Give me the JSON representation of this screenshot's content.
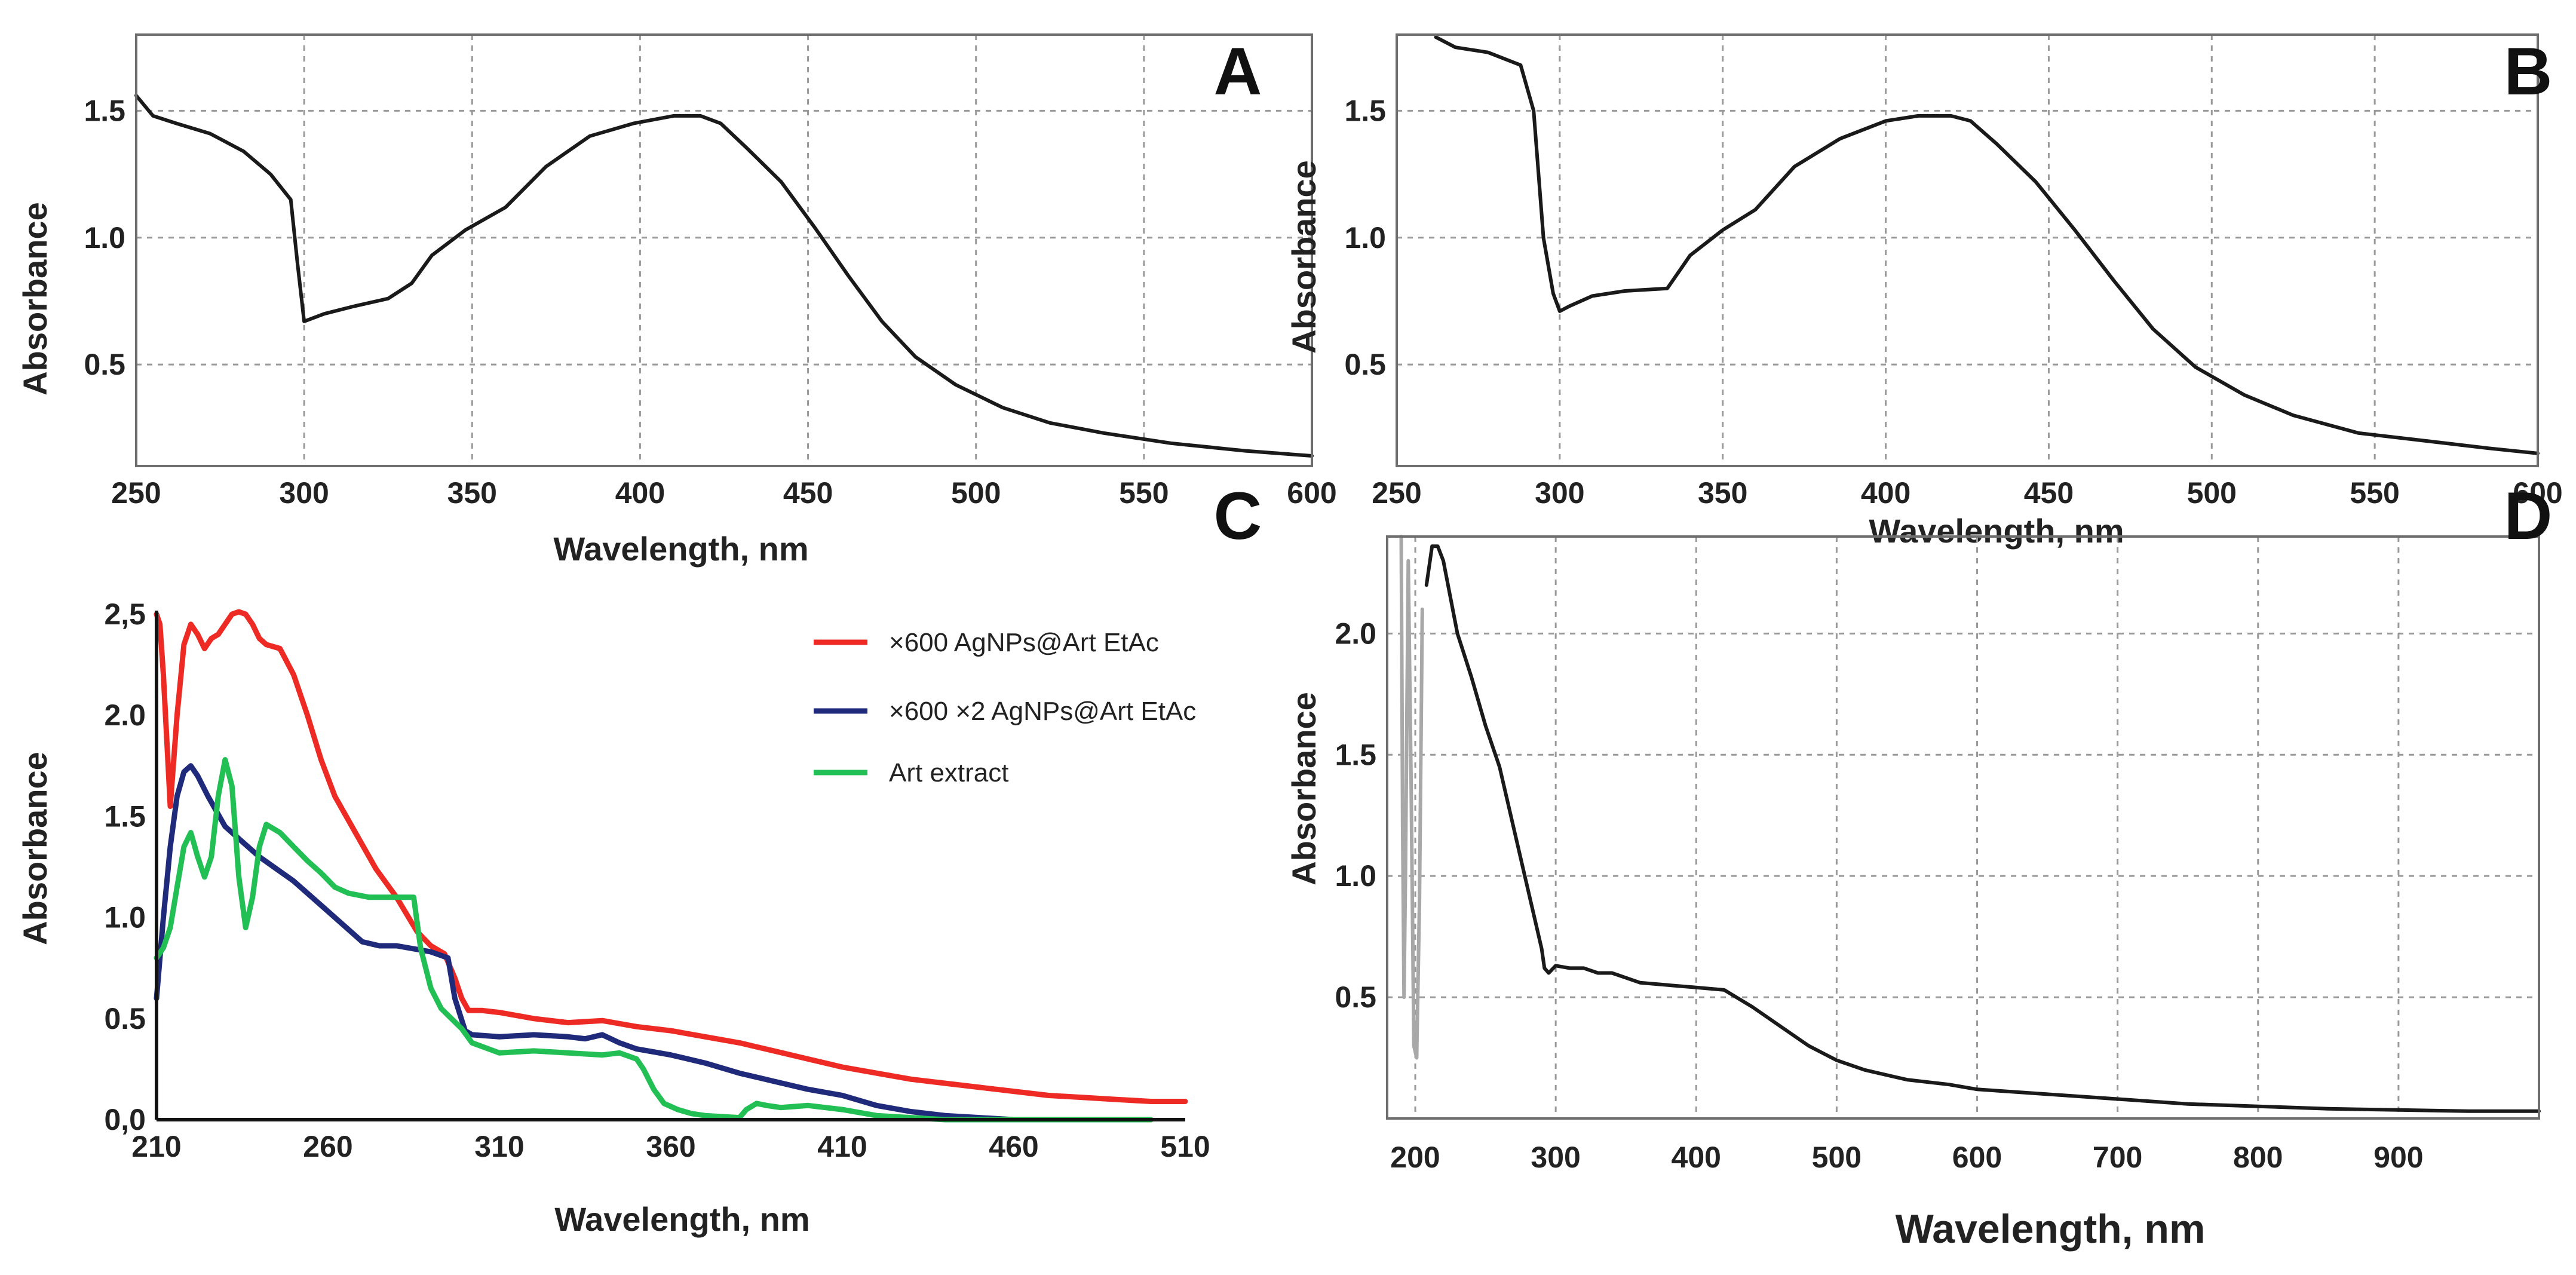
{
  "chart_data": [
    {
      "panel": "A",
      "type": "line",
      "letter": "A",
      "xlabel": "Wavelength, nm",
      "ylabel": "Absorbance",
      "xlim": [
        250,
        600
      ],
      "ylim": [
        0.1,
        1.8
      ],
      "grid": true,
      "xticks": [
        250,
        300,
        350,
        400,
        450,
        500,
        550,
        600
      ],
      "yticks": [
        0.5,
        1.0,
        1.5
      ],
      "ytick_labels": [
        "0.5",
        "1.0",
        "1.5"
      ],
      "series": [
        {
          "name": "spectrum",
          "color": "#1a1a1a",
          "x": [
            250,
            255,
            262,
            272,
            282,
            290,
            296,
            298,
            300,
            306,
            315,
            325,
            332,
            338,
            348,
            360,
            372,
            385,
            398,
            410,
            418,
            424,
            432,
            442,
            452,
            462,
            472,
            482,
            494,
            508,
            522,
            538,
            558,
            580,
            600
          ],
          "y": [
            1.56,
            1.48,
            1.45,
            1.41,
            1.34,
            1.25,
            1.15,
            0.9,
            0.67,
            0.7,
            0.73,
            0.76,
            0.82,
            0.93,
            1.03,
            1.12,
            1.28,
            1.4,
            1.45,
            1.48,
            1.48,
            1.45,
            1.35,
            1.22,
            1.04,
            0.85,
            0.67,
            0.53,
            0.42,
            0.33,
            0.27,
            0.23,
            0.19,
            0.16,
            0.14
          ]
        }
      ]
    },
    {
      "panel": "B",
      "type": "line",
      "letter": "B",
      "xlabel": "Wavelength, nm",
      "ylabel": "Absorbance",
      "xlim": [
        250,
        600
      ],
      "ylim": [
        0.1,
        1.8
      ],
      "grid": true,
      "xticks": [
        250,
        300,
        350,
        400,
        450,
        500,
        550,
        600
      ],
      "yticks": [
        0.5,
        1.0,
        1.5
      ],
      "ytick_labels": [
        "0.5",
        "1.0",
        "1.5"
      ],
      "series": [
        {
          "name": "spectrum",
          "color": "#1a1a1a",
          "x": [
            262,
            268,
            278,
            288,
            292,
            295,
            298,
            300,
            303,
            310,
            320,
            333,
            340,
            350,
            360,
            372,
            386,
            400,
            410,
            420,
            426,
            434,
            446,
            458,
            470,
            482,
            495,
            510,
            525,
            545,
            565,
            585,
            600
          ],
          "y": [
            1.79,
            1.75,
            1.73,
            1.68,
            1.5,
            1.0,
            0.78,
            0.71,
            0.73,
            0.77,
            0.79,
            0.8,
            0.93,
            1.03,
            1.11,
            1.28,
            1.39,
            1.46,
            1.48,
            1.48,
            1.46,
            1.37,
            1.22,
            1.03,
            0.83,
            0.64,
            0.49,
            0.38,
            0.3,
            0.23,
            0.2,
            0.17,
            0.15
          ]
        }
      ]
    },
    {
      "panel": "C",
      "type": "line",
      "letter": "C",
      "xlabel": "Wavelength, nm",
      "ylabel": "Absorbance",
      "xlim": [
        210,
        510
      ],
      "ylim": [
        0,
        2.5
      ],
      "grid": false,
      "xticks": [
        210,
        260,
        310,
        360,
        410,
        460,
        510
      ],
      "yticks": [
        0,
        0.5,
        1.0,
        1.5,
        2.0,
        2.5
      ],
      "ytick_labels": [
        "0,0",
        "0.5",
        "1.0",
        "1.5",
        "2.0",
        "2,5"
      ],
      "legend_position": "top-right",
      "series": [
        {
          "name": "×600 AgNPs@Art EtAc",
          "color": "#ee2a24",
          "x": [
            210,
            211,
            212,
            214,
            216,
            218,
            220,
            222,
            224,
            226,
            228,
            230,
            232,
            234,
            236,
            238,
            240,
            242,
            246,
            250,
            254,
            258,
            262,
            268,
            274,
            280,
            286,
            290,
            294,
            297,
            299,
            301,
            305,
            310,
            320,
            330,
            340,
            350,
            360,
            370,
            380,
            390,
            400,
            410,
            420,
            430,
            440,
            450,
            460,
            470,
            480,
            490,
            500,
            505,
            510
          ],
          "y": [
            2.5,
            2.45,
            2.2,
            1.55,
            2.0,
            2.35,
            2.45,
            2.4,
            2.33,
            2.38,
            2.4,
            2.45,
            2.5,
            2.52,
            2.5,
            2.45,
            2.38,
            2.35,
            2.33,
            2.2,
            2.0,
            1.78,
            1.6,
            1.42,
            1.24,
            1.1,
            0.93,
            0.86,
            0.82,
            0.7,
            0.6,
            0.54,
            0.54,
            0.53,
            0.5,
            0.48,
            0.49,
            0.46,
            0.44,
            0.41,
            0.38,
            0.34,
            0.3,
            0.26,
            0.23,
            0.2,
            0.18,
            0.16,
            0.14,
            0.12,
            0.11,
            0.1,
            0.09,
            0.09,
            0.09
          ]
        },
        {
          "name": "×600 ×2 AgNPs@Art EtAc",
          "color": "#1f2a7a",
          "x": [
            210,
            212,
            214,
            216,
            218,
            220,
            222,
            225,
            230,
            240,
            250,
            260,
            270,
            275,
            280,
            290,
            295,
            297,
            300,
            302,
            310,
            320,
            330,
            335,
            340,
            345,
            350,
            360,
            370,
            380,
            390,
            400,
            410,
            420,
            430,
            440,
            450,
            460,
            470,
            480
          ],
          "y": [
            0.6,
            1.0,
            1.35,
            1.6,
            1.72,
            1.75,
            1.7,
            1.6,
            1.45,
            1.3,
            1.18,
            1.03,
            0.88,
            0.86,
            0.86,
            0.83,
            0.8,
            0.6,
            0.44,
            0.42,
            0.41,
            0.42,
            0.41,
            0.4,
            0.42,
            0.38,
            0.35,
            0.32,
            0.28,
            0.23,
            0.19,
            0.15,
            0.12,
            0.07,
            0.04,
            0.02,
            0.01,
            0.0,
            0.0,
            0.0
          ]
        },
        {
          "name": "Art  extract",
          "color": "#22bf55",
          "x": [
            210,
            212,
            214,
            216,
            218,
            220,
            222,
            224,
            226,
            228,
            230,
            232,
            234,
            236,
            238,
            240,
            242,
            246,
            250,
            254,
            258,
            262,
            266,
            272,
            280,
            285,
            287,
            290,
            293,
            296,
            299,
            302,
            310,
            320,
            330,
            340,
            345,
            350,
            352,
            355,
            358,
            362,
            366,
            370,
            380,
            382,
            385,
            388,
            392,
            400,
            405,
            410,
            420,
            430,
            440,
            450,
            460,
            480,
            500
          ],
          "y": [
            0.8,
            0.85,
            0.95,
            1.15,
            1.35,
            1.42,
            1.3,
            1.2,
            1.3,
            1.6,
            1.78,
            1.65,
            1.2,
            0.95,
            1.1,
            1.35,
            1.46,
            1.42,
            1.35,
            1.28,
            1.22,
            1.15,
            1.12,
            1.1,
            1.1,
            1.1,
            0.85,
            0.65,
            0.55,
            0.5,
            0.45,
            0.38,
            0.33,
            0.34,
            0.33,
            0.32,
            0.33,
            0.3,
            0.25,
            0.15,
            0.08,
            0.05,
            0.03,
            0.02,
            0.01,
            0.05,
            0.08,
            0.07,
            0.06,
            0.07,
            0.06,
            0.05,
            0.02,
            0.01,
            0.0,
            0.0,
            0.0,
            0.0,
            0.0
          ]
        }
      ]
    },
    {
      "panel": "D",
      "type": "line",
      "letter": "D",
      "xlabel": "Wavelength, nm",
      "ylabel": "Absorbance",
      "xlim": [
        180,
        1000
      ],
      "ylim": [
        0.0,
        2.4
      ],
      "grid": true,
      "xticks": [
        200,
        300,
        400,
        500,
        600,
        700,
        800,
        900
      ],
      "yticks": [
        0.5,
        1.0,
        1.5,
        2.0
      ],
      "ytick_labels": [
        "0.5",
        "1.0",
        "1.5",
        "2.0"
      ],
      "series": [
        {
          "name": "baseline noise",
          "color": "#a8a8a8",
          "x": [
            190,
            191,
            192,
            193,
            195,
            197,
            199,
            201,
            203,
            205
          ],
          "y": [
            2.4,
            1.2,
            0.5,
            1.0,
            2.3,
            1.4,
            0.3,
            0.25,
            0.9,
            2.1
          ]
        },
        {
          "name": "spectrum",
          "color": "#1a1a1a",
          "x": [
            208,
            212,
            216,
            220,
            230,
            240,
            250,
            260,
            270,
            280,
            286,
            290,
            292,
            295,
            300,
            310,
            320,
            330,
            340,
            350,
            360,
            380,
            400,
            420,
            440,
            460,
            480,
            500,
            520,
            550,
            580,
            600,
            650,
            700,
            750,
            800,
            850,
            900,
            950,
            1000
          ],
          "y": [
            2.2,
            2.36,
            2.36,
            2.3,
            2.0,
            1.82,
            1.62,
            1.45,
            1.2,
            0.95,
            0.8,
            0.7,
            0.62,
            0.6,
            0.63,
            0.62,
            0.62,
            0.6,
            0.6,
            0.58,
            0.56,
            0.55,
            0.54,
            0.53,
            0.46,
            0.38,
            0.3,
            0.24,
            0.2,
            0.16,
            0.14,
            0.12,
            0.1,
            0.08,
            0.06,
            0.05,
            0.04,
            0.035,
            0.03,
            0.03
          ]
        }
      ]
    }
  ]
}
